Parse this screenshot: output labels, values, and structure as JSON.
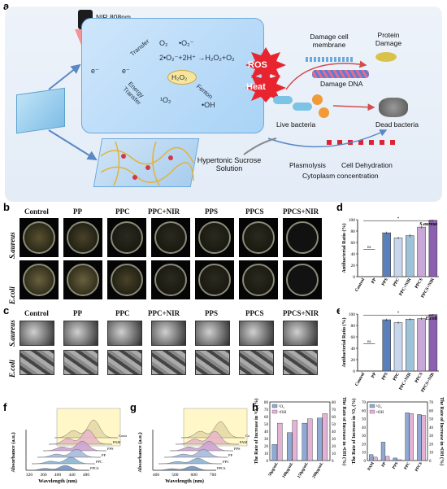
{
  "panels": {
    "a": "a",
    "b": "b",
    "c": "c",
    "d": "d",
    "e": "e",
    "f": "f",
    "g": "g",
    "h": "h"
  },
  "schematic": {
    "nir": "NIR 808nm",
    "e_minus": "e⁻",
    "e_minus2": "e⁻",
    "transfer": "Transfer",
    "energy_transfer": "Energy Transfer",
    "o2_a": "O₂",
    "o2_b": "•O₂⁻",
    "reaction": "2•O₂⁻+2H⁺ →H₂O₂+O₂",
    "h2o2": "H₂O₂",
    "fenton": "Fenton",
    "singlet": "¹O₂",
    "oh": "•OH",
    "ros": "ROS",
    "heat": "Heat",
    "damage_membrane": "Damage cell membrane",
    "protein_damage": "Protein Damage",
    "damage_dna": "Damage DNA",
    "live_bacteria": "Live bacteria",
    "dead_bacteria": "Dead bacteria",
    "hypertonic": "Hypertonic Sucrose Solution",
    "plasmolysis": "Plasmolysis",
    "dehydration": "Cell Dehydration",
    "cytoplasm": "Cytoplasm concentration"
  },
  "groups": [
    "Control",
    "PP",
    "PPC",
    "PPC+NIR",
    "PPS",
    "PPCS",
    "PPCS+NIR"
  ],
  "rows": {
    "s_aureus": "S.aureus",
    "e_coli": "E.coli"
  },
  "colors": {
    "control": "#ffffff",
    "pp": "#9fb4d6",
    "pps": "#5b7fb8",
    "ppc": "#c7d6ea",
    "ppcnir": "#9ec2d8",
    "ppcs": "#c9a8d9",
    "ppcsnir": "#8c5fb0"
  },
  "chart_data": [
    {
      "type": "bar",
      "id": "d",
      "categories": [
        "Control",
        "PP",
        "PPS",
        "PPC",
        "PPC+NIR",
        "PPCS",
        "PPCS+NIR"
      ],
      "values": [
        0,
        0,
        77,
        68,
        72,
        87,
        99
      ],
      "errors": [
        0,
        0,
        2,
        2,
        3,
        2,
        1
      ],
      "ylabel": "Antibacterial Ratio (%)",
      "ylim": [
        0,
        100
      ],
      "yticks": [
        "0",
        "20",
        "40",
        "60",
        "80",
        "100"
      ],
      "legend": "S.aureus",
      "sig": [
        "ns",
        "*"
      ]
    },
    {
      "type": "bar",
      "id": "e",
      "categories": [
        "Control",
        "PP",
        "PPS",
        "PPC",
        "PPC+NIR",
        "PPCS",
        "PPCS+NIR"
      ],
      "values": [
        0,
        0,
        90,
        85,
        91,
        92,
        99
      ],
      "errors": [
        0,
        0,
        2,
        2,
        2,
        2,
        1
      ],
      "ylabel": "Antibacterial Ratio (%)",
      "ylim": [
        0,
        100
      ],
      "yticks": [
        "0",
        "20",
        "40",
        "60",
        "80",
        "100"
      ],
      "legend": "E.coli",
      "sig": [
        "ns",
        "*"
      ]
    },
    {
      "type": "line",
      "id": "f",
      "xlabel": "Wavelength (nm)",
      "ylabel": "Absorbance (a.u.)",
      "xticks": [
        "320",
        "360",
        "400",
        "440",
        "480"
      ],
      "series": [
        {
          "name": "Control"
        },
        {
          "name": "PAM"
        },
        {
          "name": "PPS"
        },
        {
          "name": "PP"
        },
        {
          "name": "PPC"
        },
        {
          "name": "PPCS"
        }
      ]
    },
    {
      "type": "line",
      "id": "g",
      "xlabel": "Wavelength (nm)",
      "ylabel": "Absorbance (a.u.)",
      "xticks": [
        "400",
        "500",
        "600",
        "700"
      ],
      "series": [
        {
          "name": "Control"
        },
        {
          "name": "PAM"
        },
        {
          "name": "PPS"
        },
        {
          "name": "PP"
        },
        {
          "name": "PPC"
        },
        {
          "name": "PPCS"
        }
      ]
    },
    {
      "type": "bar",
      "id": "h1",
      "categories": [
        "50μg/mL",
        "100μg/mL",
        "150μg/mL",
        "200μg/mL"
      ],
      "series": [
        {
          "name": "¹O₂",
          "values": [
            22,
            38,
            51,
            58
          ]
        },
        {
          "name": "•OH",
          "values": [
            51,
            55,
            57,
            64
          ]
        }
      ],
      "ylabel": "The Rate of Increase in ¹O₂ (%)",
      "ylabel2": "The Rate of Increase in •OH (%)",
      "ylim": [
        0,
        80
      ],
      "yticks": [
        "0",
        "10",
        "20",
        "30",
        "40",
        "50",
        "60",
        "70",
        "80"
      ]
    },
    {
      "type": "bar",
      "id": "h2",
      "categories": [
        "PAM",
        "PP",
        "PPS",
        "PPC",
        "PPCS"
      ],
      "series": [
        {
          "name": "¹O₂",
          "values": [
            7,
            22,
            3,
            57,
            55
          ]
        },
        {
          "name": "•OH",
          "values": [
            4,
            5,
            1,
            56,
            54
          ]
        }
      ],
      "ylabel": "The Rate of Increase in ¹O₂ (%)",
      "ylabel2": "The Rate of Increase in •OH (%)",
      "ylim": [
        0,
        70
      ],
      "yticks": [
        "0",
        "10",
        "20",
        "30",
        "40",
        "50",
        "60",
        "70"
      ]
    }
  ]
}
